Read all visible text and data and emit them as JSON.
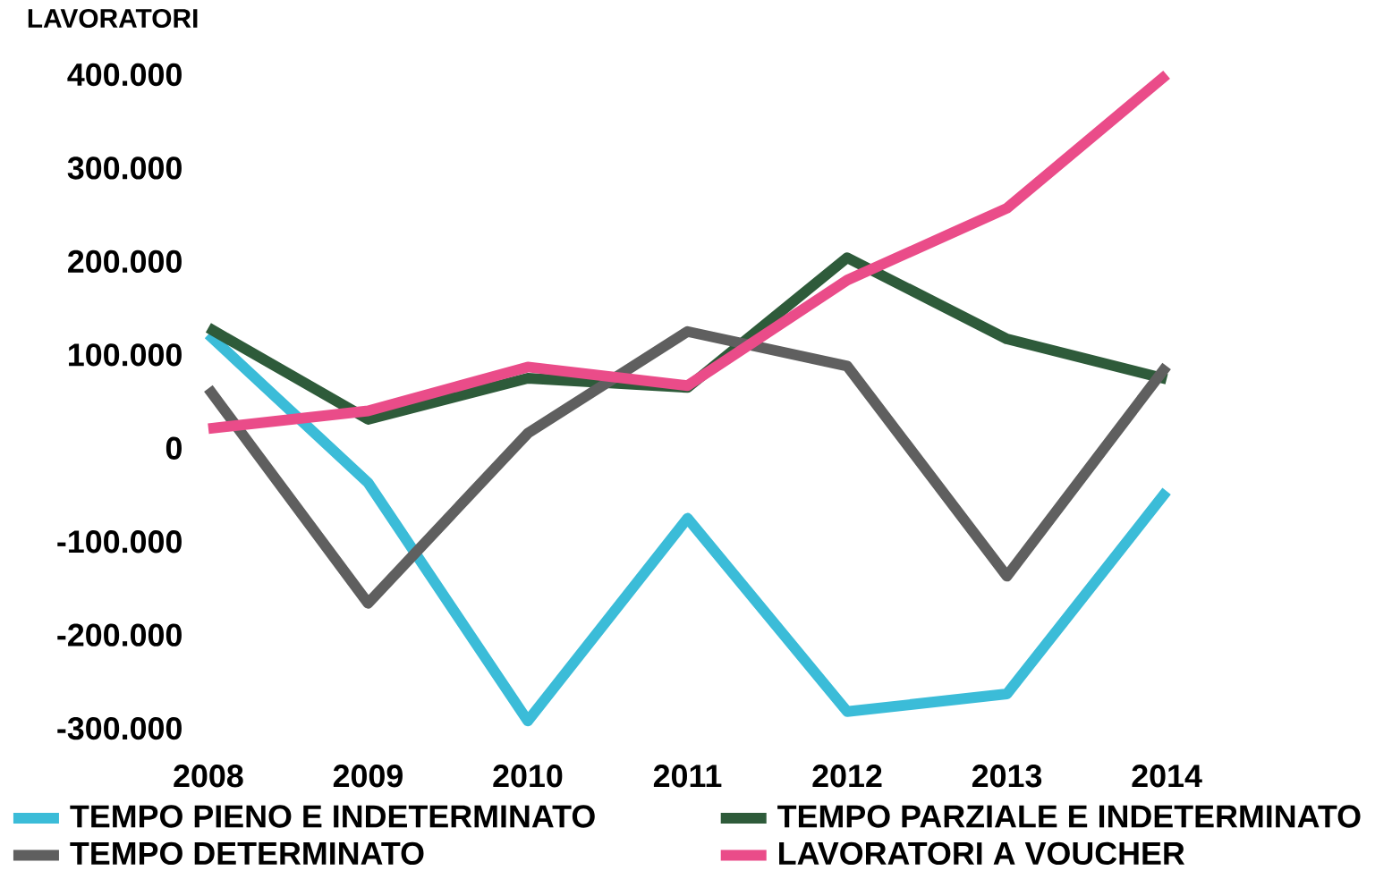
{
  "chart_data": {
    "type": "line",
    "ylabel": "LAVORATORI",
    "x": [
      2008,
      2009,
      2010,
      2011,
      2012,
      2013,
      2014
    ],
    "xlim": [
      2008,
      2014
    ],
    "xticks": [
      2008,
      2009,
      2010,
      2011,
      2012,
      2013,
      2014
    ],
    "ylim": [
      -300000,
      400000
    ],
    "yticks": [
      {
        "value": -300000,
        "label": "-300.000"
      },
      {
        "value": -200000,
        "label": "-200.000"
      },
      {
        "value": -100000,
        "label": "-100.000"
      },
      0,
      {
        "value": 100000,
        "label": "100.000"
      },
      {
        "value": 200000,
        "label": "200.000"
      },
      {
        "value": 300000,
        "label": "300.000"
      },
      {
        "value": 400000,
        "label": "400.000"
      }
    ],
    "legend": "bottom",
    "marker": "none",
    "line_style": "solid",
    "series": [
      {
        "name": "TEMPO PIENO E INDETERMINATO",
        "color": "#3bbcd8",
        "values": [
          122000,
          -37000,
          -292000,
          -75000,
          -282000,
          -263000,
          -46000
        ]
      },
      {
        "name": "TEMPO PARZIALE E INDETERMINATO",
        "color": "#2e5b3a",
        "values": [
          129000,
          31000,
          75000,
          65000,
          204000,
          117000,
          74000
        ]
      },
      {
        "name": "TEMPO DETERMINATO",
        "color": "#5f5f5f",
        "values": [
          64000,
          -166000,
          16000,
          125000,
          88000,
          -137000,
          88000
        ]
      },
      {
        "name": "LAVORATORI A VOUCHER",
        "color": "#ea4c89",
        "values": [
          21000,
          40000,
          87000,
          67000,
          180000,
          257000,
          400000
        ]
      }
    ]
  }
}
